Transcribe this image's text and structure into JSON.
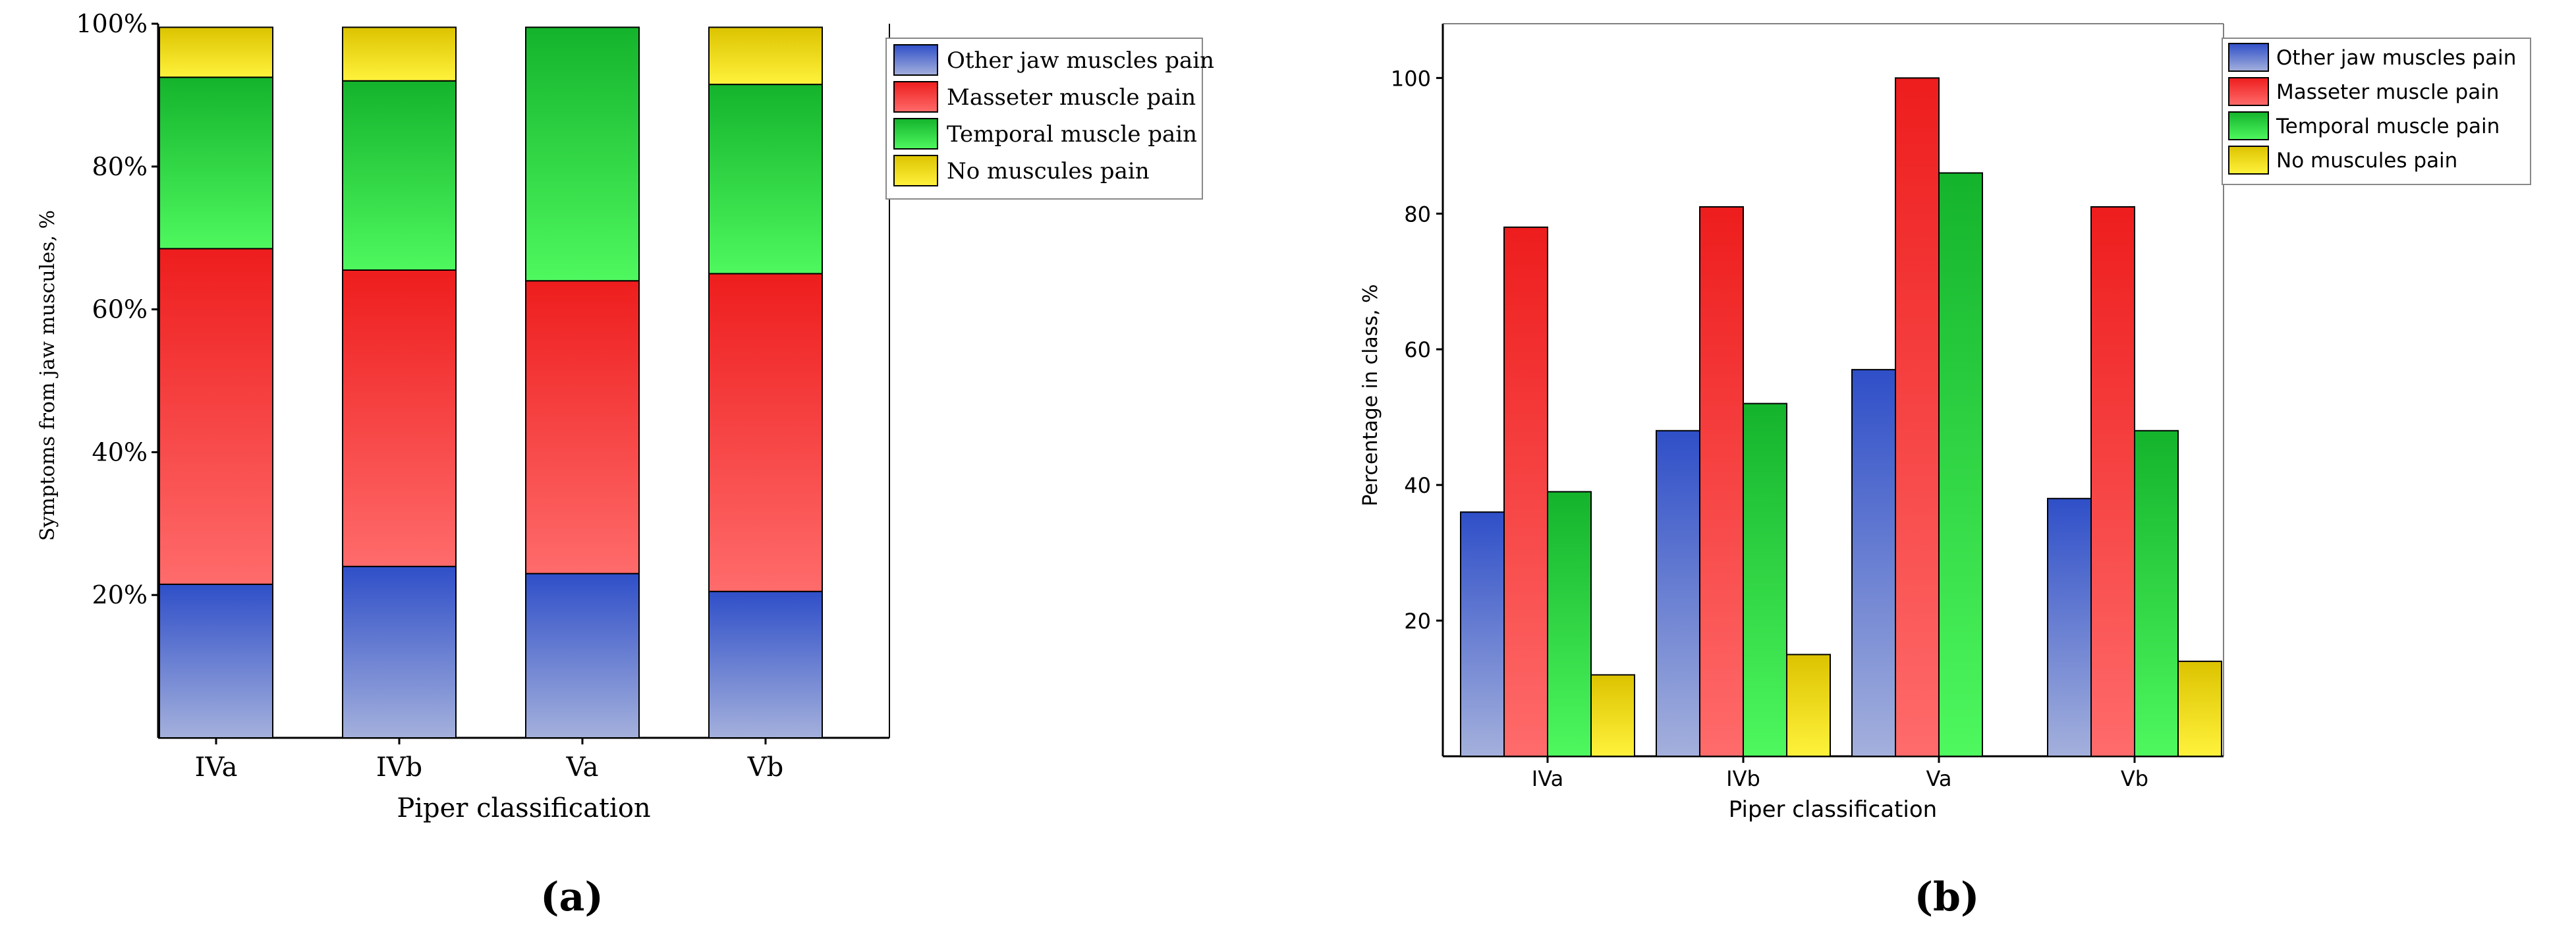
{
  "colors": {
    "blue": [
      "#2f4fc8",
      "#a4b0dc"
    ],
    "red": [
      "#ee1d1d",
      "#ff6b6b"
    ],
    "green": [
      "#14b32c",
      "#4ef85e"
    ],
    "yellow": [
      "#dcc300",
      "#fff23c"
    ],
    "axis": "#000000",
    "legend_border": "#888888"
  },
  "panel_labels": {
    "a": "(a)",
    "b": "(b)"
  },
  "chart_data": [
    {
      "id": "a",
      "type": "bar",
      "stacked": true,
      "categories": [
        "IVa",
        "IVb",
        "Va",
        "Vb"
      ],
      "series": [
        {
          "name": "Other jaw muscles pain",
          "color": "blue",
          "values": [
            21.5,
            24,
            23,
            20.5
          ]
        },
        {
          "name": "Masseter muscle pain",
          "color": "red",
          "values": [
            47,
            41.5,
            41,
            44.5
          ]
        },
        {
          "name": "Temporal muscle pain",
          "color": "green",
          "values": [
            24,
            26.5,
            35.5,
            26.5
          ]
        },
        {
          "name": "No muscules pain",
          "color": "yellow",
          "values": [
            7,
            7.5,
            0,
            8
          ]
        }
      ],
      "title": "",
      "xlabel": "Piper classification",
      "ylabel": "Symptoms from jaw muscules, %",
      "ylim": [
        0,
        100
      ],
      "yticks": [
        20,
        40,
        60,
        80,
        100
      ],
      "ytick_labels": [
        "20%",
        "40%",
        "60%",
        "80%",
        "100%"
      ],
      "grid": false,
      "legend_position": "top-right"
    },
    {
      "id": "b",
      "type": "bar",
      "stacked": false,
      "categories": [
        "IVa",
        "IVb",
        "Va",
        "Vb"
      ],
      "series": [
        {
          "name": "Other jaw muscles pain",
          "color": "blue",
          "values": [
            36,
            48,
            57,
            38
          ]
        },
        {
          "name": "Masseter muscle pain",
          "color": "red",
          "values": [
            78,
            81,
            100,
            81
          ]
        },
        {
          "name": "Temporal muscle pain",
          "color": "green",
          "values": [
            39,
            52,
            86,
            48
          ]
        },
        {
          "name": "No muscules pain",
          "color": "yellow",
          "values": [
            12,
            15,
            0,
            14
          ]
        }
      ],
      "title": "",
      "xlabel": "Piper classification",
      "ylabel": "Percentage in class, %",
      "ylim": [
        0,
        108
      ],
      "yticks": [
        20,
        40,
        60,
        80,
        100
      ],
      "ytick_labels": [
        "20",
        "40",
        "60",
        "80",
        "100"
      ],
      "grid": false,
      "legend_position": "top-right"
    }
  ]
}
